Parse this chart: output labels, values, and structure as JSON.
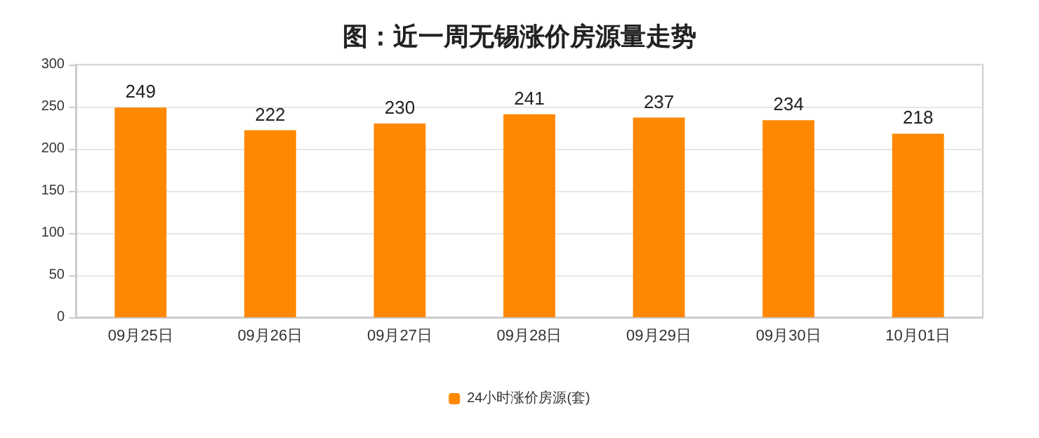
{
  "chart_data": {
    "type": "bar",
    "title": "图：近一周无锡涨价房源量走势",
    "categories": [
      "09月25日",
      "09月26日",
      "09月27日",
      "09月28日",
      "09月29日",
      "09月30日",
      "10月01日"
    ],
    "series": [
      {
        "name": "24小时涨价房源(套)",
        "color": "#ff8800",
        "values": [
          249,
          222,
          230,
          241,
          237,
          234,
          218
        ]
      }
    ],
    "ylim": [
      0,
      300
    ],
    "yticks": [
      0,
      50,
      100,
      150,
      200,
      250,
      300
    ],
    "grid": "y",
    "legend": "bottom",
    "data_labels": true
  }
}
